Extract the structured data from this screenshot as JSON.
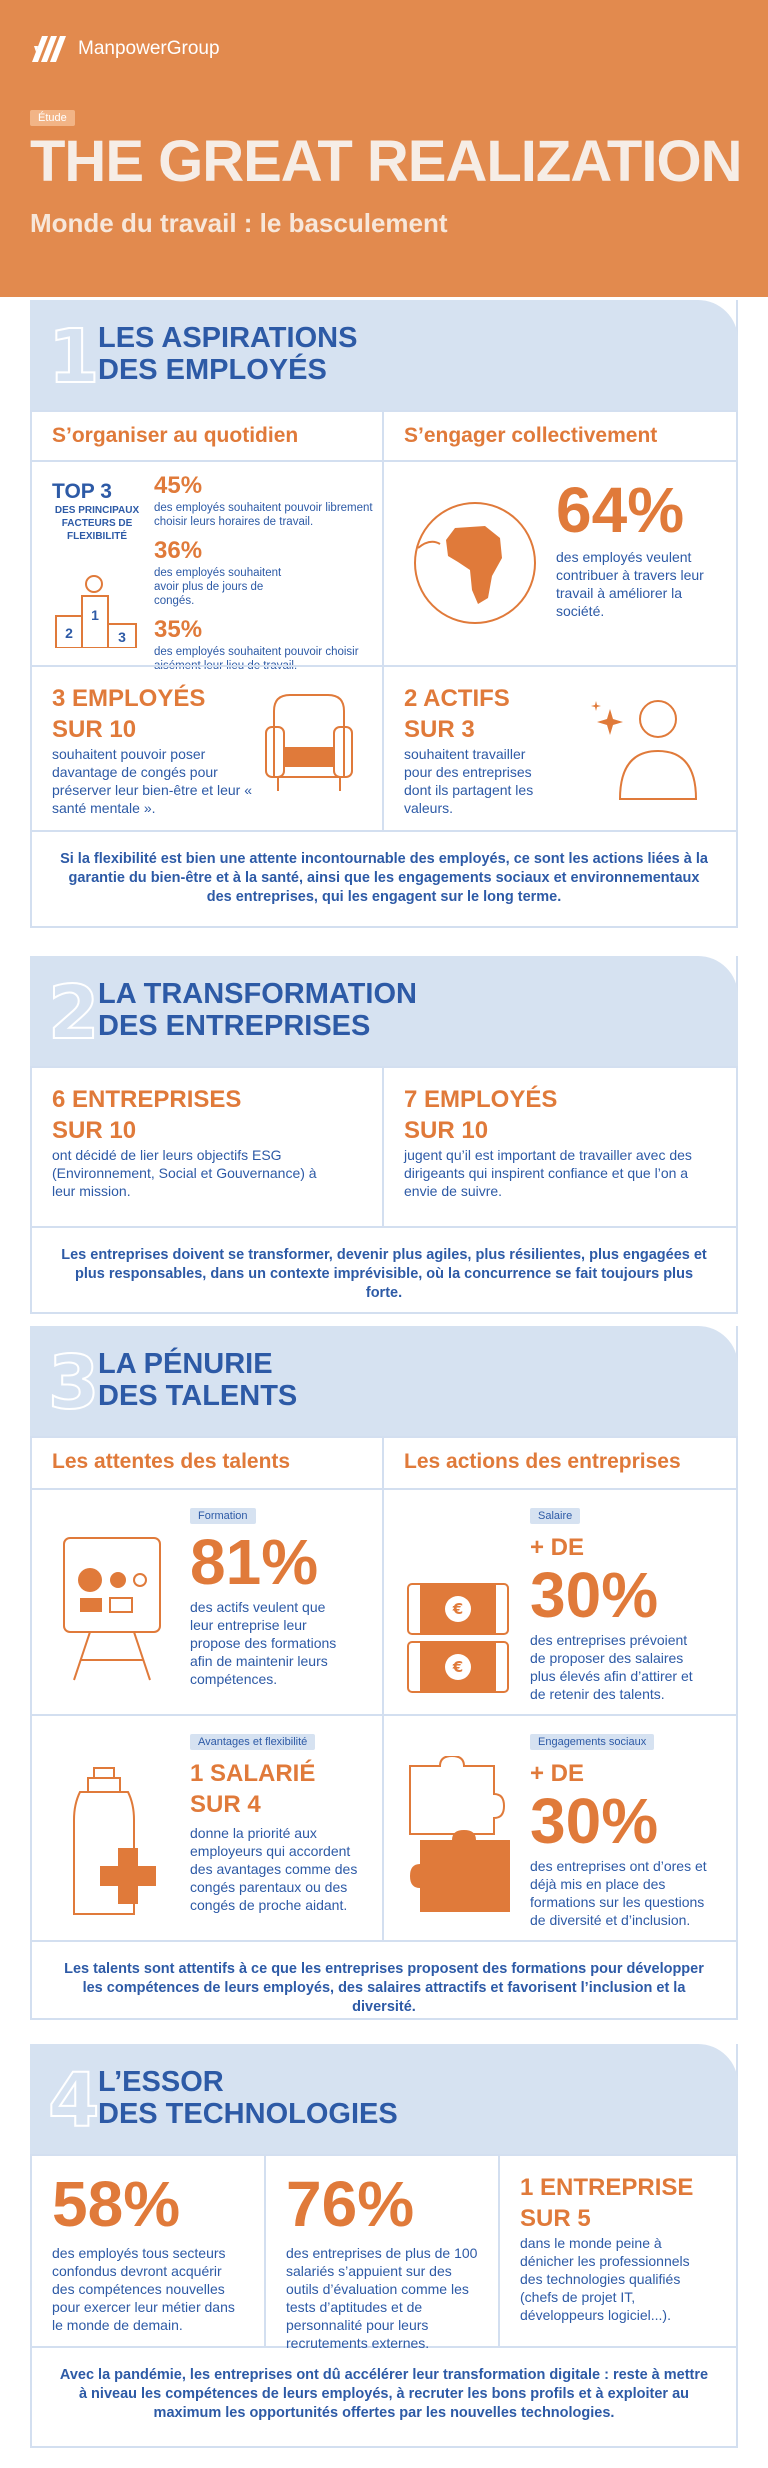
{
  "header": {
    "brand": "ManpowerGroup",
    "tag": "Étude",
    "title": "THE GREAT REALIZATION",
    "subtitle": "Monde du travail : le basculement"
  },
  "s1": {
    "num": "1",
    "title": "LES ASPIRATIONS\nDES EMPLOYÉS",
    "left_title": "S’organiser au quotidien",
    "right_title": "S’engager collectivement",
    "top3_title": "TOP 3",
    "top3_sub": "DES PRINCIPAUX FACTEURS DE FLEXIBILITÉ",
    "podium": [
      "1",
      "2",
      "3"
    ],
    "stats": [
      {
        "value": "45%",
        "text": "des employés souhaitent pouvoir librement choisir leurs horaires de travail."
      },
      {
        "value": "36%",
        "text": "des employés souhaitent avoir plus de jours de congés."
      },
      {
        "value": "35%",
        "text": "des employés souhaitent pouvoir choisir aisément leur lieu de travail."
      }
    ],
    "engage_value": "64%",
    "engage_text": "des employés veulent contribuer à travers leur travail à améliorer la société.",
    "e3_title_1": "3 EMPLOYÉS",
    "e3_title_2": "SUR 10",
    "e3_text": "souhaitent pouvoir poser davantage de congés pour préserver leur bien-être et leur « santé mentale ».",
    "a2_title_1": "2 ACTIFS",
    "a2_title_2": "SUR 3",
    "a2_text": "souhaitent travailler pour des entreprises dont ils partagent les valeurs.",
    "summary": "Si la flexibilité est bien une attente incontournable des employés, ce sont les actions liées à la garantie du bien-être et à la santé, ainsi que les engagements sociaux et environnementaux des entreprises, qui les engagent sur le long terme."
  },
  "s2": {
    "num": "2",
    "title": "LA TRANSFORMATION\nDES ENTREPRISES",
    "left_title_1": "6 ENTREPRISES",
    "left_title_2": "SUR 10",
    "left_text": "ont décidé de lier leurs objectifs ESG (Environnement, Social et Gouvernance) à leur mission.",
    "right_title_1": "7 EMPLOYÉS",
    "right_title_2": "SUR 10",
    "right_text": "jugent qu’il est important de travailler avec des dirigeants qui inspirent confiance et que l’on a envie de suivre.",
    "summary": "Les entreprises doivent se transformer, devenir plus agiles, plus résilientes, plus engagées et plus responsables, dans un contexte imprévisible, où la concurrence se fait toujours plus forte."
  },
  "s3": {
    "num": "3",
    "title": "LA PÉNURIE\nDES TALENTS",
    "left_title": "Les attentes des talents",
    "right_title": "Les actions des entreprises",
    "formation_tag": "Formation",
    "formation_value": "81%",
    "formation_text": "des actifs veulent que leur entreprise leur propose des formations afin de maintenir leurs compétences.",
    "salaire_tag": "Salaire",
    "salaire_pre": "+ DE",
    "salaire_value": "30%",
    "salaire_text": "des entreprises prévoient de proposer des salaires plus élevés afin d’attirer et de retenir des talents.",
    "avantages_tag": "Avantages et flexibilité",
    "avantages_title_1": "1 SALARIÉ",
    "avantages_title_2": "SUR 4",
    "avantages_text": "donne la priorité aux employeurs qui accordent des avantages comme des congés parentaux ou des congés de proche aidant.",
    "engag_tag": "Engagements sociaux",
    "engag_pre": "+ DE",
    "engag_value": "30%",
    "engag_text": "des entreprises ont d’ores et déjà mis en place des formations sur les questions de diversité et d’inclusion.",
    "summary": "Les talents sont attentifs à ce que les entreprises proposent des formations pour développer les compétences de leurs employés, des salaires attractifs et favorisent l’inclusion et la diversité."
  },
  "s4": {
    "num": "4",
    "title": "L’ESSOR\nDES TECHNOLOGIES",
    "c1_value": "58%",
    "c1_text": "des employés tous secteurs confondus devront acquérir des compétences nouvelles pour exercer leur métier dans le monde de demain.",
    "c2_value": "76%",
    "c2_text": "des entreprises de plus de 100 salariés s’appuient sur des outils d’évaluation comme les tests d’aptitudes et de personnalité pour leurs recrutements externes.",
    "c3_title_1": "1 ENTREPRISE",
    "c3_title_2": "SUR 5",
    "c3_text": "dans le monde peine à dénicher les professionnels des technologies qualifiés (chefs de projet IT, développeurs logiciel...).",
    "summary": "Avec la pandémie, les entreprises ont dû accélérer leur transformation digitale : reste à mettre à niveau les compétences de leurs employés, à recruter les bons profils et à exploiter au maximum les opportunités offertes par les nouvelles technologies."
  }
}
